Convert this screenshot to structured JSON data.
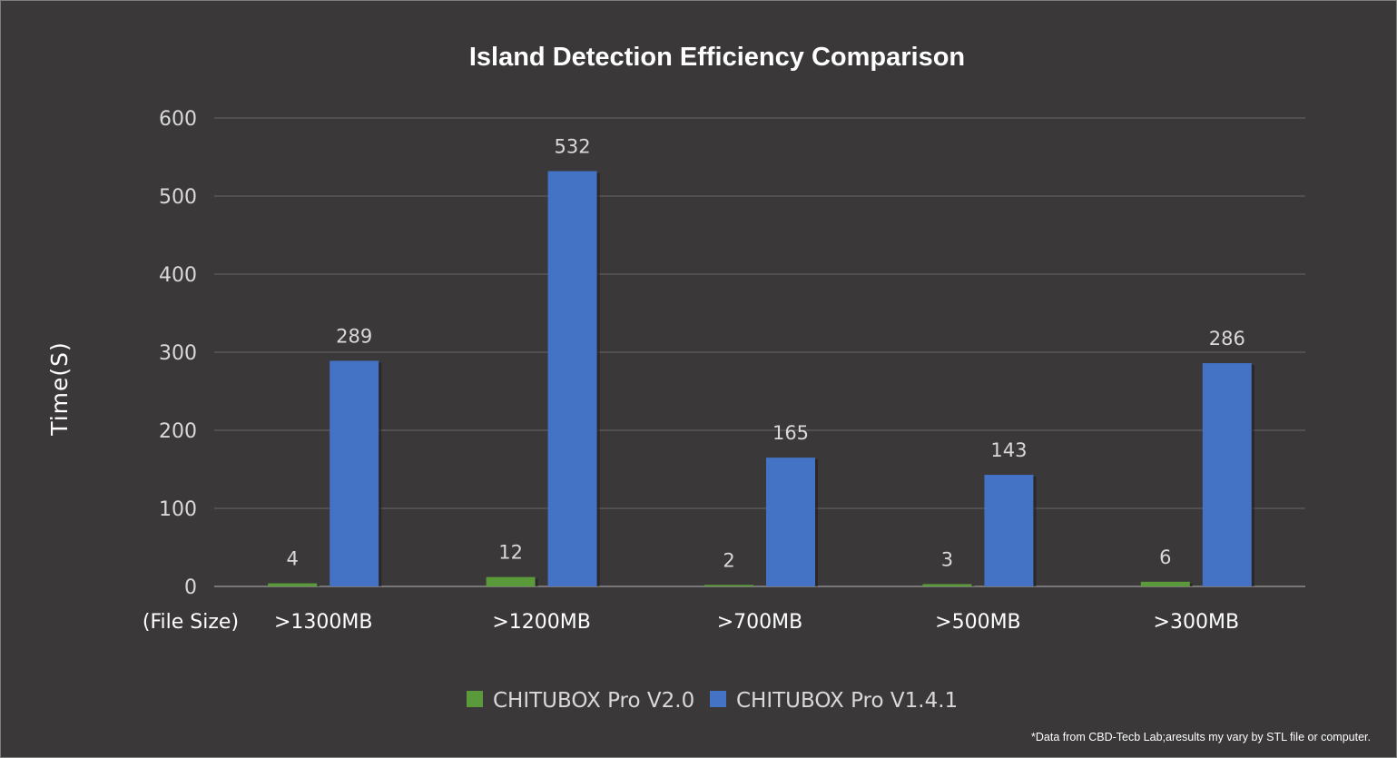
{
  "chart_data": {
    "type": "bar",
    "title": "Island Detection Efficiency Comparison",
    "ylabel": "Time(S)",
    "xlabel": "(File Size)",
    "ylim": [
      0,
      600
    ],
    "yticks": [
      0,
      100,
      200,
      300,
      400,
      500,
      600
    ],
    "grid": true,
    "legend_position": "bottom",
    "categories": [
      ">1300MB",
      ">1200MB",
      ">700MB",
      ">500MB",
      ">300MB"
    ],
    "series": [
      {
        "name": "CHITUBOX Pro V2.0",
        "values": [
          4,
          12,
          2,
          3,
          6
        ],
        "color": "#5a9a3a"
      },
      {
        "name": "CHITUBOX Pro V1.4.1",
        "values": [
          289,
          532,
          165,
          143,
          286
        ],
        "color": "#4472c4"
      }
    ],
    "footnote": "*Data from CBD-Tecb Lab;aresults my vary by STL file or computer."
  },
  "colors": {
    "background": "#3a3838",
    "gridline": "#5f5d5d",
    "text": "#d9d9d9"
  }
}
